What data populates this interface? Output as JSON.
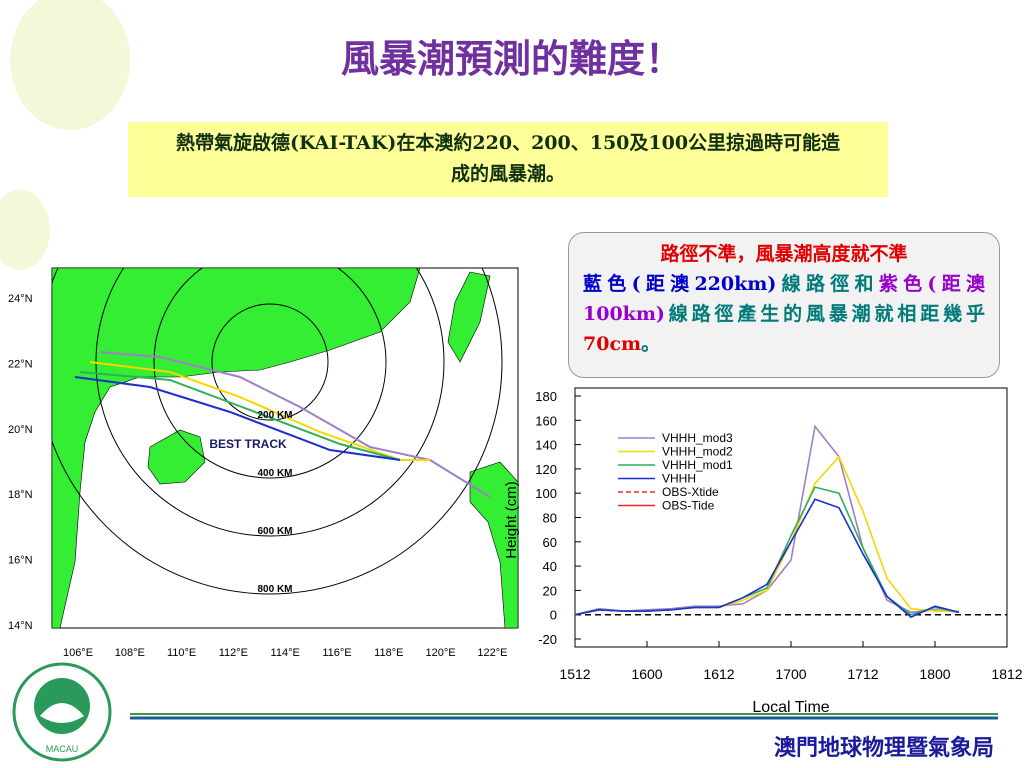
{
  "slide_title": "風暴潮預測的難度！",
  "intro_box": {
    "text": "熱帶氣旋啟德(KAI-TAK)在本澳約220、200、150及100公里掠過時可能造成的風暴潮。"
  },
  "note_box": {
    "segments": [
      {
        "text": "路徑不準，風暴潮高度就不準",
        "color": "#e00000"
      },
      {
        "text": "藍色(距澳220km)",
        "color": "#0000cc"
      },
      {
        "text": "線路徑和",
        "color": "#007a7a"
      },
      {
        "text": "紫色(距澳100km)",
        "color": "#9900cc"
      },
      {
        "text": "線路徑產生的風暴潮就相距幾乎",
        "color": "#007a7a"
      },
      {
        "text": "70cm",
        "color": "#e00000"
      },
      {
        "text": "。",
        "color": "#007a7a"
      }
    ]
  },
  "map": {
    "lat_labels": [
      "24°N",
      "22°N",
      "20°N",
      "18°N",
      "16°N",
      "14°N"
    ],
    "lon_labels": [
      "106°E",
      "108°E",
      "110°E",
      "112°E",
      "114°E",
      "116°E",
      "118°E",
      "120°E",
      "122°E"
    ],
    "range_labels": [
      "200 KM",
      "400 KM",
      "600 KM",
      "800 KM"
    ],
    "track_label": "BEST TRACK"
  },
  "chart_data": {
    "type": "line",
    "ylabel": "Height (cm)",
    "xlabel": "Local Time",
    "x": [
      0,
      4,
      8,
      12,
      16,
      20,
      24,
      28,
      32,
      36,
      40,
      44,
      48,
      52,
      56,
      60,
      64
    ],
    "series": [
      {
        "name": "VHHH_mod3",
        "color": "#9f7fc8",
        "dash": false,
        "values": [
          0,
          5,
          3,
          4,
          5,
          7,
          7,
          9,
          20,
          45,
          155,
          130,
          55,
          12,
          2,
          4,
          2
        ]
      },
      {
        "name": "VHHH_mod2",
        "color": "#f5d800",
        "dash": false,
        "values": [
          0,
          4,
          3,
          3,
          4,
          6,
          6,
          12,
          20,
          60,
          108,
          130,
          85,
          30,
          5,
          3,
          3
        ]
      },
      {
        "name": "VHHH_mod1",
        "color": "#2fb05a",
        "dash": false,
        "values": [
          0,
          4,
          3,
          3,
          4,
          6,
          6,
          14,
          22,
          65,
          105,
          100,
          55,
          15,
          0,
          6,
          2
        ]
      },
      {
        "name": "VHHH",
        "color": "#1c2fd0",
        "dash": false,
        "values": [
          0,
          4,
          3,
          3,
          4,
          6,
          6,
          14,
          25,
          60,
          95,
          88,
          50,
          15,
          -2,
          7,
          2
        ]
      },
      {
        "name": "OBS-Xtide",
        "color": "#ff2020",
        "dash": true,
        "values": [
          null,
          null,
          null,
          null,
          null,
          null,
          null,
          null,
          null,
          null,
          null,
          null,
          null,
          null,
          null,
          null,
          null
        ]
      },
      {
        "name": "OBS-Tide",
        "color": "#ff2020",
        "dash": false,
        "values": [
          null,
          null,
          null,
          null,
          null,
          null,
          null,
          null,
          null,
          null,
          null,
          null,
          null,
          null,
          null,
          null,
          null
        ]
      }
    ],
    "xlim": [
      0,
      72
    ],
    "xticks": [
      {
        "value": 0,
        "label": "1512"
      },
      {
        "value": 12,
        "label": "1600"
      },
      {
        "value": 24,
        "label": "1612"
      },
      {
        "value": 36,
        "label": "1700"
      },
      {
        "value": 48,
        "label": "1712"
      },
      {
        "value": 60,
        "label": "1800"
      },
      {
        "value": 72,
        "label": "1812"
      }
    ],
    "ylim": [
      -20,
      180
    ],
    "yticks": [
      -20,
      0,
      20,
      40,
      60,
      80,
      100,
      120,
      140,
      160,
      180
    ]
  },
  "footer": {
    "org": "澳門地球物理暨氣象局",
    "logo_text": "MACAU"
  }
}
